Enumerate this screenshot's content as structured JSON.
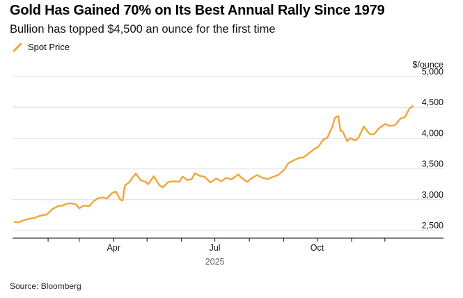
{
  "title": "Gold Has Gained 70% on Its Best Annual Rally Since 1979",
  "subtitle": "Bullion has topped $4,500 an ounce for the first time",
  "source": "Source: Bloomberg",
  "colors": {
    "series": "#f2a43a",
    "grid": "#dcdcdc",
    "axis": "#000000",
    "text": "#111111"
  },
  "chart_data": {
    "type": "line",
    "title": "Gold Has Gained 70% on Its Best Annual Rally Since 1979",
    "subtitle": "Bullion has topped $4,500 an ounce for the first time",
    "ylabel": "$/ounce",
    "ylim": [
      2400,
      5100
    ],
    "yticks": [
      2500,
      3000,
      3500,
      4000,
      4500,
      5000
    ],
    "ytick_labels": [
      "2,500",
      "3,000",
      "3,500",
      "4,000",
      "4,500",
      "5,000"
    ],
    "xticks": [
      {
        "date": "2025-04-01",
        "label": "Apr"
      },
      {
        "date": "2025-07-01",
        "label": "Jul"
      },
      {
        "date": "2025-10-01",
        "label": "Oct"
      }
    ],
    "year_label": "2025",
    "xlim": [
      "2024-12-31",
      "2025-12-28"
    ],
    "grid": true,
    "legend_position": "top-left",
    "series": [
      {
        "name": "Spot Price",
        "color": "#f2a43a",
        "points": [
          [
            "2025-01-02",
            2640
          ],
          [
            "2025-01-05",
            2630
          ],
          [
            "2025-01-10",
            2665
          ],
          [
            "2025-01-15",
            2690
          ],
          [
            "2025-01-20",
            2705
          ],
          [
            "2025-01-25",
            2740
          ],
          [
            "2025-01-31",
            2760
          ],
          [
            "2025-02-05",
            2850
          ],
          [
            "2025-02-10",
            2895
          ],
          [
            "2025-02-14",
            2905
          ],
          [
            "2025-02-18",
            2935
          ],
          [
            "2025-02-22",
            2940
          ],
          [
            "2025-02-26",
            2925
          ],
          [
            "2025-03-01",
            2860
          ],
          [
            "2025-03-05",
            2905
          ],
          [
            "2025-03-10",
            2895
          ],
          [
            "2025-03-14",
            2975
          ],
          [
            "2025-03-18",
            3025
          ],
          [
            "2025-03-22",
            3035
          ],
          [
            "2025-03-26",
            3020
          ],
          [
            "2025-03-31",
            3115
          ],
          [
            "2025-04-03",
            3130
          ],
          [
            "2025-04-07",
            3000
          ],
          [
            "2025-04-09",
            2985
          ],
          [
            "2025-04-11",
            3230
          ],
          [
            "2025-04-15",
            3285
          ],
          [
            "2025-04-18",
            3360
          ],
          [
            "2025-04-21",
            3425
          ],
          [
            "2025-04-25",
            3320
          ],
          [
            "2025-04-30",
            3290
          ],
          [
            "2025-05-02",
            3250
          ],
          [
            "2025-05-07",
            3380
          ],
          [
            "2025-05-12",
            3240
          ],
          [
            "2025-05-15",
            3200
          ],
          [
            "2025-05-20",
            3285
          ],
          [
            "2025-05-25",
            3300
          ],
          [
            "2025-05-30",
            3290
          ],
          [
            "2025-06-02",
            3375
          ],
          [
            "2025-06-06",
            3320
          ],
          [
            "2025-06-10",
            3330
          ],
          [
            "2025-06-13",
            3430
          ],
          [
            "2025-06-17",
            3390
          ],
          [
            "2025-06-22",
            3370
          ],
          [
            "2025-06-27",
            3280
          ],
          [
            "2025-07-02",
            3345
          ],
          [
            "2025-07-07",
            3300
          ],
          [
            "2025-07-11",
            3355
          ],
          [
            "2025-07-16",
            3330
          ],
          [
            "2025-07-22",
            3410
          ],
          [
            "2025-07-25",
            3355
          ],
          [
            "2025-07-30",
            3290
          ],
          [
            "2025-08-04",
            3360
          ],
          [
            "2025-08-08",
            3400
          ],
          [
            "2025-08-13",
            3355
          ],
          [
            "2025-08-18",
            3335
          ],
          [
            "2025-08-22",
            3370
          ],
          [
            "2025-08-27",
            3400
          ],
          [
            "2025-09-01",
            3480
          ],
          [
            "2025-09-05",
            3590
          ],
          [
            "2025-09-10",
            3640
          ],
          [
            "2025-09-15",
            3680
          ],
          [
            "2025-09-19",
            3690
          ],
          [
            "2025-09-24",
            3760
          ],
          [
            "2025-09-29",
            3830
          ],
          [
            "2025-10-02",
            3860
          ],
          [
            "2025-10-07",
            3985
          ],
          [
            "2025-10-10",
            4000
          ],
          [
            "2025-10-15",
            4200
          ],
          [
            "2025-10-17",
            4330
          ],
          [
            "2025-10-20",
            4360
          ],
          [
            "2025-10-22",
            4120
          ],
          [
            "2025-10-24",
            4110
          ],
          [
            "2025-10-28",
            3950
          ],
          [
            "2025-10-31",
            4000
          ],
          [
            "2025-11-04",
            3960
          ],
          [
            "2025-11-07",
            4000
          ],
          [
            "2025-11-12",
            4190
          ],
          [
            "2025-11-17",
            4070
          ],
          [
            "2025-11-21",
            4060
          ],
          [
            "2025-11-25",
            4150
          ],
          [
            "2025-12-01",
            4230
          ],
          [
            "2025-12-05",
            4200
          ],
          [
            "2025-12-10",
            4210
          ],
          [
            "2025-12-15",
            4320
          ],
          [
            "2025-12-19",
            4340
          ],
          [
            "2025-12-23",
            4480
          ],
          [
            "2025-12-26",
            4520
          ]
        ]
      }
    ]
  }
}
